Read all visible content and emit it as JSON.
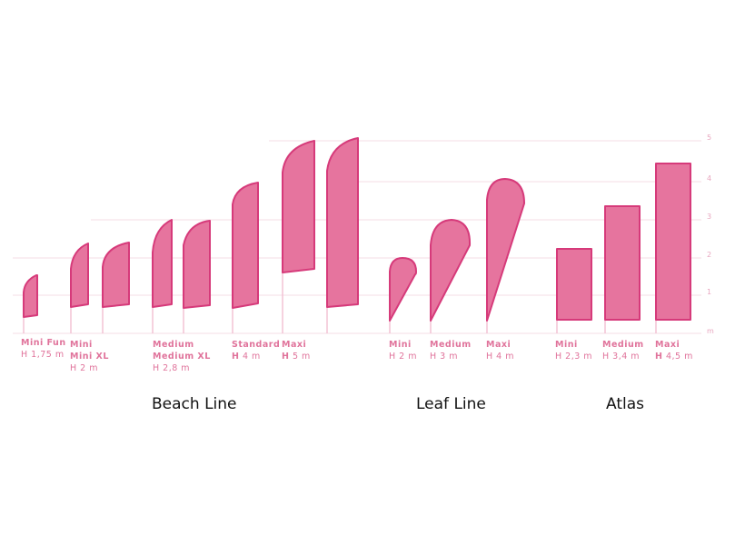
{
  "colors": {
    "flag_fill": "#e6749e",
    "flag_edge": "#d63a7a",
    "pole": "#f2c2d4",
    "grid": "#f6dce6",
    "label": "#e0739b",
    "tick": "#e8a6bf",
    "group_text": "#111111"
  },
  "scale": {
    "unit": "m",
    "ticks": [
      "5",
      "4",
      "3",
      "2",
      "1",
      "m"
    ]
  },
  "groups": {
    "beach": "Beach Line",
    "leaf": "Leaf Line",
    "atlas": "Atlas"
  },
  "labels": {
    "mini_fun": {
      "name": "Mini Fun",
      "height": "H 1,75 m"
    },
    "mini_pair": {
      "name1": "Mini",
      "name2": "Mini XL",
      "height": "H 2 m"
    },
    "medium_pair": {
      "name1": "Medium",
      "name2": "Medium XL",
      "height": "H 2,8 m"
    },
    "standard": {
      "name": "Standard",
      "height_prefix": "H",
      "height_value": "4 m"
    },
    "maxi": {
      "name": "Maxi",
      "height_prefix": "H",
      "height_value": "5 m"
    },
    "leaf_mini": {
      "name": "Mini",
      "height": "H 2 m"
    },
    "leaf_medium": {
      "name": "Medium",
      "height": "H 3 m"
    },
    "leaf_maxi": {
      "name": "Maxi",
      "height": "H 4 m"
    },
    "atlas_mini": {
      "name": "Mini",
      "height": "H 2,3 m"
    },
    "atlas_medium": {
      "name": "Medium",
      "height": "H 3,4 m"
    },
    "atlas_maxi": {
      "name": "Maxi",
      "height_prefix": "H",
      "height_value": "4,5 m"
    }
  }
}
